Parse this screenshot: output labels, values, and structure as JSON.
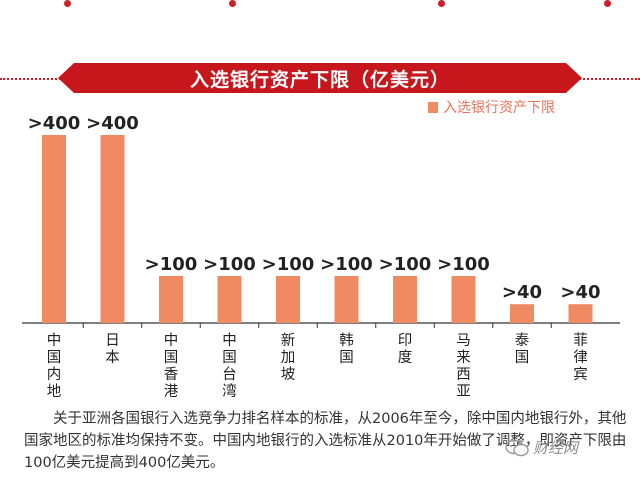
{
  "banner": {
    "title": "入选银行资产下限（亿美元）"
  },
  "legend": {
    "label": "入选银行资产下限",
    "color": "#f08a63"
  },
  "chart_data": {
    "type": "bar",
    "title": "入选银行资产下限（亿美元）",
    "categories": [
      "中国内地",
      "日本",
      "中国香港",
      "中国台湾",
      "新加坡",
      "韩国",
      "印度",
      "马来西亚",
      "泰国",
      "菲律宾"
    ],
    "series": [
      {
        "name": "入选银行资产下限",
        "values": [
          400,
          400,
          100,
          100,
          100,
          100,
          100,
          100,
          40,
          40
        ]
      }
    ],
    "data_labels": [
      ">400",
      ">400",
      ">100",
      ">100",
      ">100",
      ">100",
      ">100",
      ">100",
      ">40",
      ">40"
    ],
    "ylim": [
      0,
      400
    ],
    "grid": false,
    "legend_position": "top-right",
    "bar_color": "#f08a63"
  },
  "footnote": {
    "text": "关于亚洲各国银行入选竞争力排名样本的标准，从2006年至今，除中国内地银行外，其他国家地区的标准均保持不变。中国内地银行的入选标准从2010年开始做了调整，即资产下限由100亿美元提高到400亿美元。"
  },
  "watermark": {
    "text": "财经网"
  },
  "colors": {
    "banner": "#c8161d",
    "bar": "#f08a63",
    "label": "#222222"
  }
}
